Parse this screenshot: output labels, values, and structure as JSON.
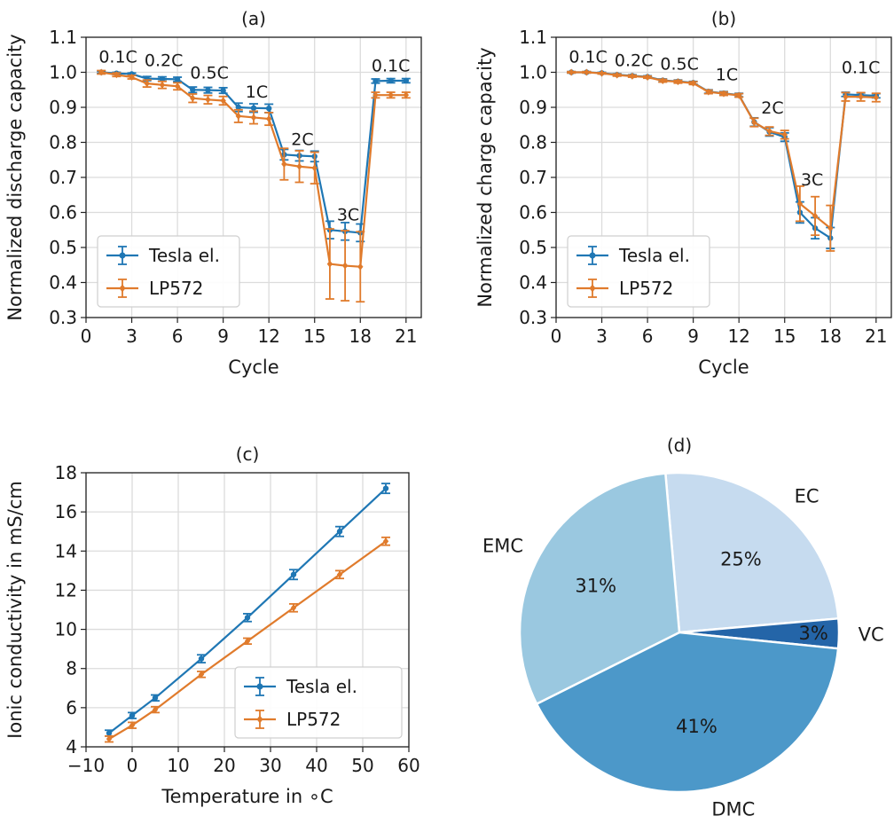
{
  "chart_data": [
    {
      "type": "line",
      "title": "(a)",
      "xlabel": "Cycle",
      "ylabel": "Normalized discharge capacity",
      "xlim": [
        0,
        22
      ],
      "ylim": [
        0.3,
        1.1
      ],
      "xticks": [
        "0",
        "3",
        "6",
        "9",
        "12",
        "15",
        "18",
        "21"
      ],
      "yticks": [
        "0.3",
        "0.4",
        "0.5",
        "0.6",
        "0.7",
        "0.8",
        "0.9",
        "1.0",
        "1.1"
      ],
      "grid": true,
      "legend": "bottom-left",
      "x": [
        1,
        2,
        3,
        4,
        5,
        6,
        7,
        8,
        9,
        10,
        11,
        12,
        13,
        14,
        15,
        16,
        17,
        18,
        19,
        20,
        21
      ],
      "series": [
        {
          "name": "Tesla el.",
          "color": "#1f77b4",
          "values": [
            1.0,
            0.997,
            0.995,
            0.982,
            0.981,
            0.98,
            0.95,
            0.949,
            0.948,
            0.9,
            0.898,
            0.897,
            0.765,
            0.762,
            0.76,
            0.55,
            0.546,
            0.542,
            0.975,
            0.976,
            0.976
          ],
          "errors": [
            0.003,
            0.003,
            0.003,
            0.006,
            0.006,
            0.006,
            0.008,
            0.008,
            0.008,
            0.012,
            0.012,
            0.012,
            0.015,
            0.015,
            0.015,
            0.025,
            0.025,
            0.025,
            0.006,
            0.006,
            0.006
          ]
        },
        {
          "name": "LP572",
          "color": "#e07b2c",
          "values": [
            1.0,
            0.993,
            0.986,
            0.968,
            0.964,
            0.96,
            0.926,
            0.922,
            0.919,
            0.875,
            0.871,
            0.867,
            0.738,
            0.731,
            0.727,
            0.453,
            0.448,
            0.445,
            0.935,
            0.935,
            0.935
          ],
          "errors": [
            0.005,
            0.005,
            0.005,
            0.01,
            0.01,
            0.01,
            0.012,
            0.012,
            0.012,
            0.018,
            0.018,
            0.018,
            0.045,
            0.045,
            0.045,
            0.1,
            0.1,
            0.1,
            0.008,
            0.008,
            0.008
          ]
        }
      ],
      "annotations": [
        {
          "text": "0.1C",
          "x": 2.1,
          "y": 1.045
        },
        {
          "text": "0.2C",
          "x": 5.1,
          "y": 1.035
        },
        {
          "text": "0.5C",
          "x": 8.1,
          "y": 1.0
        },
        {
          "text": "1C",
          "x": 11.2,
          "y": 0.945
        },
        {
          "text": "2C",
          "x": 14.2,
          "y": 0.81
        },
        {
          "text": "3C",
          "x": 17.2,
          "y": 0.595
        },
        {
          "text": "0.1C",
          "x": 20.0,
          "y": 1.02
        }
      ]
    },
    {
      "type": "line",
      "title": "(b)",
      "xlabel": "Cycle",
      "ylabel": "Normalized charge capacity",
      "xlim": [
        0,
        22
      ],
      "ylim": [
        0.3,
        1.1
      ],
      "xticks": [
        "0",
        "3",
        "6",
        "9",
        "12",
        "15",
        "18",
        "21"
      ],
      "yticks": [
        "0.3",
        "0.4",
        "0.5",
        "0.6",
        "0.7",
        "0.8",
        "0.9",
        "1.0",
        "1.1"
      ],
      "grid": true,
      "legend": "bottom-left",
      "x": [
        1,
        2,
        3,
        4,
        5,
        6,
        7,
        8,
        9,
        10,
        11,
        12,
        13,
        14,
        15,
        16,
        17,
        18,
        19,
        20,
        21
      ],
      "series": [
        {
          "name": "Tesla el.",
          "color": "#1f77b4",
          "values": [
            1.0,
            1.0,
            0.998,
            0.993,
            0.99,
            0.987,
            0.977,
            0.974,
            0.97,
            0.945,
            0.94,
            0.935,
            0.858,
            0.83,
            0.815,
            0.6,
            0.555,
            0.527,
            0.937,
            0.935,
            0.933
          ],
          "errors": [
            0.002,
            0.002,
            0.002,
            0.003,
            0.003,
            0.003,
            0.004,
            0.004,
            0.004,
            0.005,
            0.005,
            0.005,
            0.012,
            0.012,
            0.012,
            0.03,
            0.03,
            0.03,
            0.006,
            0.006,
            0.006
          ]
        },
        {
          "name": "LP572",
          "color": "#e07b2c",
          "values": [
            1.0,
            1.0,
            0.997,
            0.992,
            0.989,
            0.986,
            0.976,
            0.973,
            0.969,
            0.944,
            0.939,
            0.934,
            0.857,
            0.832,
            0.822,
            0.625,
            0.59,
            0.555,
            0.93,
            0.93,
            0.928
          ],
          "errors": [
            0.002,
            0.002,
            0.002,
            0.003,
            0.003,
            0.003,
            0.004,
            0.004,
            0.004,
            0.005,
            0.005,
            0.005,
            0.012,
            0.012,
            0.012,
            0.05,
            0.055,
            0.065,
            0.012,
            0.012,
            0.012
          ]
        }
      ],
      "annotations": [
        {
          "text": "0.1C",
          "x": 2.1,
          "y": 1.045
        },
        {
          "text": "0.2C",
          "x": 5.1,
          "y": 1.035
        },
        {
          "text": "0.5C",
          "x": 8.1,
          "y": 1.025
        },
        {
          "text": "1C",
          "x": 11.2,
          "y": 0.995
        },
        {
          "text": "2C",
          "x": 14.2,
          "y": 0.9
        },
        {
          "text": "3C",
          "x": 16.8,
          "y": 0.695
        },
        {
          "text": "0.1C",
          "x": 20.0,
          "y": 1.015
        }
      ]
    },
    {
      "type": "line",
      "title": "(c)",
      "xlabel": "Temperature in ∘C",
      "ylabel": "Ionic conductivity in mS/cm",
      "xlim": [
        -10,
        60
      ],
      "ylim": [
        4,
        18
      ],
      "xticks": [
        "−10",
        "0",
        "10",
        "20",
        "30",
        "40",
        "50",
        "60"
      ],
      "yticks": [
        "4",
        "6",
        "8",
        "10",
        "12",
        "14",
        "16",
        "18"
      ],
      "grid": true,
      "legend": "bottom-right",
      "x": [
        -5,
        0,
        5,
        15,
        25,
        35,
        45,
        55
      ],
      "series": [
        {
          "name": "Tesla el.",
          "color": "#1f77b4",
          "values": [
            4.7,
            5.6,
            6.5,
            8.5,
            10.6,
            12.8,
            15.0,
            17.2
          ],
          "errors": [
            0.15,
            0.15,
            0.15,
            0.2,
            0.2,
            0.25,
            0.25,
            0.25
          ]
        },
        {
          "name": "LP572",
          "color": "#e07b2c",
          "values": [
            4.4,
            5.1,
            5.9,
            7.7,
            9.4,
            11.1,
            12.8,
            14.5
          ],
          "errors": [
            0.15,
            0.15,
            0.15,
            0.15,
            0.15,
            0.2,
            0.2,
            0.2
          ]
        }
      ]
    },
    {
      "type": "pie",
      "title": "(d)",
      "slices": [
        {
          "label": "EC",
          "value": 25,
          "pct": "25%",
          "color": "#c6dbef"
        },
        {
          "label": "VC",
          "value": 3,
          "pct": "3%",
          "color": "#2465a8"
        },
        {
          "label": "DMC",
          "value": 41,
          "pct": "41%",
          "color": "#4c98c9"
        },
        {
          "label": "EMC",
          "value": 31,
          "pct": "31%",
          "color": "#9ac8e0"
        }
      ]
    }
  ]
}
